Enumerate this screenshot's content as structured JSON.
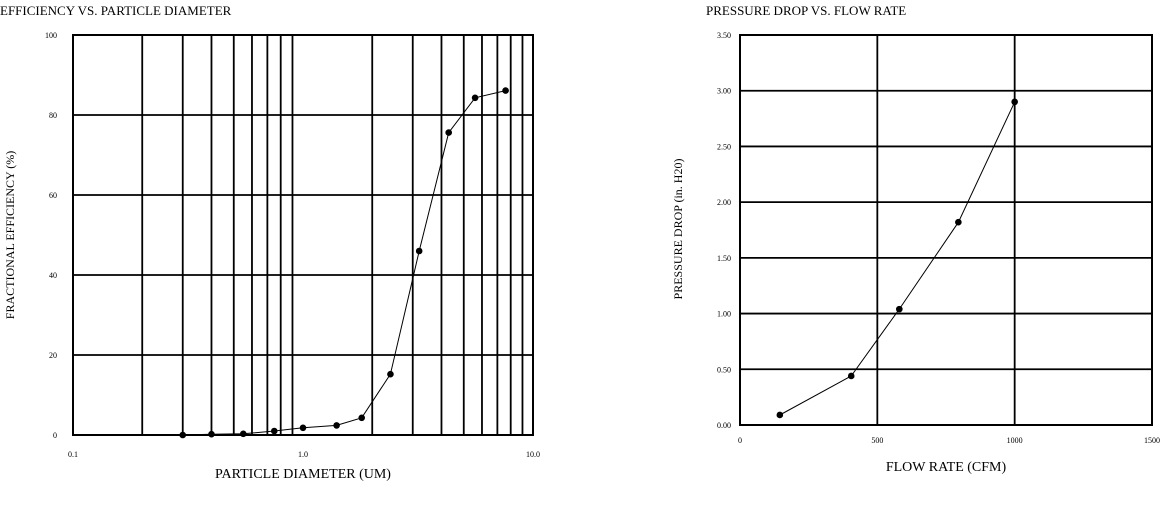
{
  "chart_data": [
    {
      "type": "line",
      "title": "EFFICIENCY VS. PARTICLE DIAMETER",
      "xlabel": "PARTICLE DIAMETER (UM)",
      "ylabel": "FRACTIONAL EFFICIENCY (%)",
      "xscale": "log",
      "xlim": [
        0.1,
        10.0
      ],
      "ylim": [
        0,
        100
      ],
      "xticks": [
        "0.1",
        "1.0",
        "10.0"
      ],
      "xtick_values": [
        0.1,
        1.0,
        10.0
      ],
      "yticks": [
        "0",
        "20",
        "40",
        "60",
        "80",
        "100"
      ],
      "ytick_values": [
        0,
        20,
        40,
        60,
        80,
        100
      ],
      "grid": true,
      "series": [
        {
          "x": [
            0.3,
            0.4,
            0.55,
            0.75,
            1.0,
            1.4,
            1.8,
            2.4,
            3.2,
            4.3,
            5.6,
            7.6
          ],
          "y": [
            0,
            0.2,
            0.3,
            1.0,
            1.8,
            2.4,
            4.3,
            15.2,
            46,
            75.6,
            84.3,
            86.1
          ]
        }
      ]
    },
    {
      "type": "line",
      "title": "PRESSURE DROP VS. FLOW RATE",
      "xlabel": "FLOW RATE (CFM)",
      "ylabel": "PRESSURE DROP (in. H20)",
      "xlim": [
        0,
        1500
      ],
      "ylim": [
        0,
        3.5
      ],
      "xticks": [
        "0",
        "500",
        "1000",
        "1500"
      ],
      "xtick_values": [
        0,
        500,
        1000,
        1500
      ],
      "yticks": [
        "0.00",
        "0.50",
        "1.00",
        "1.50",
        "2.00",
        "2.50",
        "3.00",
        "3.50"
      ],
      "ytick_values": [
        0,
        0.5,
        1.0,
        1.5,
        2.0,
        2.5,
        3.0,
        3.5
      ],
      "grid": true,
      "series": [
        {
          "x": [
            145,
            405,
            580,
            795,
            1000
          ],
          "y": [
            0.09,
            0.44,
            1.04,
            1.82,
            2.9
          ]
        }
      ]
    }
  ]
}
